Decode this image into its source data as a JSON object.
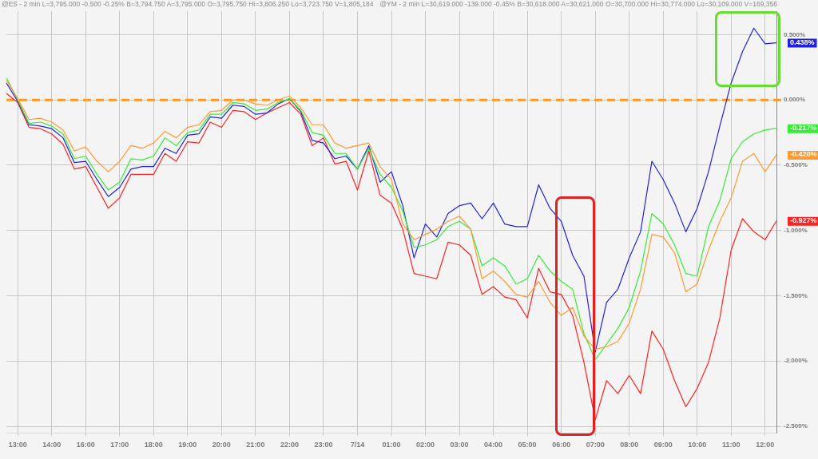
{
  "chart_data": {
    "type": "line",
    "annotations": [
      "@ES - 2 min L=3,795.000 -0.500 -0.25% B=3,794.750 A=3,795.000 O=3,795.750 Hi=3,806.250 Lo=3,723.750 V=1,805,184",
      "@YM - 2 min L=30,619.000 -139.000 -0.45% B=30,618.000 A=30,621.000 O=30,700.000 Hi=30,774.000 Lo=30,109.000 V=169,356"
    ],
    "categories": [
      null,
      "13:00",
      null,
      null,
      "14:00",
      null,
      null,
      "16:00",
      null,
      null,
      "17:00",
      null,
      null,
      "18:00",
      null,
      null,
      "19:00",
      null,
      null,
      "20:00",
      null,
      null,
      "21:00",
      null,
      null,
      "22:00",
      null,
      null,
      "23:00",
      null,
      null,
      "7/14",
      null,
      null,
      "01:00",
      null,
      null,
      "02:00",
      null,
      null,
      "03:00",
      null,
      null,
      "04:00",
      null,
      null,
      "05:00",
      null,
      null,
      "06:00",
      null,
      null,
      "07:00",
      null,
      null,
      "08:00",
      null,
      null,
      "09:00",
      null,
      null,
      "10:00",
      null,
      null,
      "11:00",
      null,
      null,
      "12:00",
      null
    ],
    "series": [
      {
        "color": "#ff9933",
        "values": [
          0.15,
          0.01,
          -0.15,
          -0.14,
          -0.17,
          -0.23,
          -0.39,
          -0.36,
          -0.47,
          -0.55,
          -0.47,
          -0.35,
          -0.37,
          -0.33,
          -0.24,
          -0.29,
          -0.21,
          -0.19,
          -0.09,
          -0.08,
          0.0,
          0.0,
          -0.03,
          -0.04,
          0.0,
          0.03,
          -0.06,
          -0.19,
          -0.19,
          -0.33,
          -0.37,
          -0.35,
          -0.33,
          -0.51,
          -0.61,
          -0.95,
          -1.07,
          -1.03,
          -0.99,
          -0.93,
          -0.89,
          -0.99,
          -1.37,
          -1.31,
          -1.39,
          -1.49,
          -1.51,
          -1.39,
          -1.55,
          -1.65,
          -1.59,
          -1.81,
          -1.91,
          -1.89,
          -1.85,
          -1.71,
          -1.45,
          -1.03,
          -1.05,
          -1.17,
          -1.47,
          -1.41,
          -1.15,
          -0.93,
          -0.75,
          -0.47,
          -0.41,
          -0.55,
          -0.42
        ],
        "value_labels": [
          null,
          null,
          null,
          null,
          null,
          null,
          null,
          null,
          null,
          null,
          null,
          null,
          null,
          null,
          null,
          null,
          null,
          null,
          null,
          null,
          null,
          null,
          null,
          null,
          null,
          null,
          null,
          null,
          null,
          null,
          null,
          null,
          null,
          null,
          null,
          null,
          null,
          null,
          null,
          null,
          null,
          null,
          null,
          null,
          null,
          null,
          null,
          null,
          null,
          null,
          null,
          null,
          null,
          null,
          null,
          null,
          null,
          null,
          null,
          null,
          null,
          null,
          null,
          null,
          null,
          null,
          null,
          null,
          "-0.420%"
        ]
      },
      {
        "color": "#33ee33",
        "values": [
          0.17,
          0.0,
          -0.18,
          -0.17,
          -0.2,
          -0.26,
          -0.45,
          -0.43,
          -0.57,
          -0.69,
          -0.63,
          -0.45,
          -0.46,
          -0.43,
          -0.29,
          -0.35,
          -0.25,
          -0.23,
          -0.11,
          -0.11,
          -0.02,
          -0.03,
          -0.08,
          -0.07,
          -0.02,
          0.01,
          -0.08,
          -0.25,
          -0.27,
          -0.41,
          -0.41,
          -0.53,
          -0.37,
          -0.57,
          -0.67,
          -0.85,
          -1.13,
          -1.11,
          -1.07,
          -0.97,
          -0.93,
          -0.99,
          -1.27,
          -1.21,
          -1.27,
          -1.41,
          -1.37,
          -1.19,
          -1.31,
          -1.39,
          -1.45,
          -1.79,
          -1.99,
          -1.87,
          -1.75,
          -1.59,
          -1.31,
          -0.87,
          -0.95,
          -1.11,
          -1.33,
          -1.35,
          -0.97,
          -0.77,
          -0.45,
          -0.32,
          -0.26,
          -0.23,
          -0.217
        ],
        "value_labels": [
          null,
          null,
          null,
          null,
          null,
          null,
          null,
          null,
          null,
          null,
          null,
          null,
          null,
          null,
          null,
          null,
          null,
          null,
          null,
          null,
          null,
          null,
          null,
          null,
          null,
          null,
          null,
          null,
          null,
          null,
          null,
          null,
          null,
          null,
          null,
          null,
          null,
          null,
          null,
          null,
          null,
          null,
          null,
          null,
          null,
          null,
          null,
          null,
          null,
          null,
          null,
          null,
          null,
          null,
          null,
          null,
          null,
          null,
          null,
          null,
          null,
          null,
          null,
          null,
          null,
          null,
          null,
          null,
          "-0.217%"
        ]
      },
      {
        "color": "#2222dd",
        "values": [
          0.13,
          -0.01,
          -0.19,
          -0.2,
          -0.22,
          -0.29,
          -0.48,
          -0.47,
          -0.61,
          -0.74,
          -0.67,
          -0.53,
          -0.51,
          -0.51,
          -0.37,
          -0.41,
          -0.27,
          -0.26,
          -0.13,
          -0.14,
          -0.04,
          -0.05,
          -0.11,
          -0.1,
          -0.03,
          0.01,
          -0.09,
          -0.31,
          -0.33,
          -0.45,
          -0.43,
          -0.53,
          -0.35,
          -0.63,
          -0.55,
          -0.81,
          -1.21,
          -0.95,
          -1.05,
          -0.87,
          -0.81,
          -0.79,
          -0.91,
          -0.79,
          -0.95,
          -0.97,
          -0.97,
          -0.65,
          -0.83,
          -0.93,
          -1.19,
          -1.35,
          -1.93,
          -1.55,
          -1.45,
          -1.21,
          -1.01,
          -0.47,
          -0.61,
          -0.79,
          -1.01,
          -0.83,
          -0.55,
          -0.2,
          0.13,
          0.37,
          0.55,
          0.43,
          0.438
        ],
        "value_labels": [
          null,
          null,
          null,
          null,
          null,
          null,
          null,
          null,
          null,
          null,
          null,
          null,
          null,
          null,
          null,
          null,
          null,
          null,
          null,
          null,
          null,
          null,
          null,
          null,
          null,
          null,
          null,
          null,
          null,
          null,
          null,
          null,
          null,
          null,
          null,
          null,
          null,
          null,
          null,
          null,
          null,
          null,
          null,
          null,
          null,
          null,
          null,
          null,
          null,
          null,
          null,
          null,
          null,
          null,
          null,
          null,
          null,
          null,
          null,
          null,
          null,
          null,
          null,
          null,
          null,
          null,
          null,
          null,
          "0.438%"
        ]
      },
      {
        "color": "#ff2222",
        "values": [
          0.05,
          -0.02,
          -0.21,
          -0.22,
          -0.26,
          -0.34,
          -0.53,
          -0.51,
          -0.67,
          -0.83,
          -0.75,
          -0.57,
          -0.57,
          -0.57,
          -0.41,
          -0.47,
          -0.32,
          -0.33,
          -0.17,
          -0.21,
          -0.08,
          -0.09,
          -0.15,
          -0.1,
          -0.06,
          -0.02,
          -0.11,
          -0.35,
          -0.29,
          -0.49,
          -0.47,
          -0.69,
          -0.39,
          -0.73,
          -0.79,
          -0.99,
          -1.33,
          -1.35,
          -1.37,
          -1.09,
          -1.11,
          -1.19,
          -1.49,
          -1.43,
          -1.51,
          -1.53,
          -1.67,
          -1.29,
          -1.47,
          -1.49,
          -1.65,
          -2.01,
          -2.45,
          -2.15,
          -2.25,
          -2.11,
          -2.25,
          -1.77,
          -1.91,
          -2.15,
          -2.35,
          -2.21,
          -2.01,
          -1.67,
          -1.15,
          -0.91,
          -1.01,
          -1.07,
          -0.927
        ],
        "value_labels": [
          null,
          null,
          null,
          null,
          null,
          null,
          null,
          null,
          null,
          null,
          null,
          null,
          null,
          null,
          null,
          null,
          null,
          null,
          null,
          null,
          null,
          null,
          null,
          null,
          null,
          null,
          null,
          null,
          null,
          null,
          null,
          null,
          null,
          null,
          null,
          null,
          null,
          null,
          null,
          null,
          null,
          null,
          null,
          null,
          null,
          null,
          null,
          null,
          null,
          null,
          null,
          null,
          null,
          null,
          null,
          null,
          null,
          null,
          null,
          null,
          null,
          null,
          null,
          null,
          null,
          null,
          null,
          null,
          "-0.927%"
        ]
      }
    ],
    "ylim": [
      -2.55,
      0.68
    ],
    "yticks": [
      {
        "value": 0.5,
        "label": "0.500%"
      },
      {
        "value": 0,
        "label": "0.000%"
      },
      {
        "value": -0.5,
        "label": "-0.500%"
      },
      {
        "value": -1,
        "label": "-1.000%"
      },
      {
        "value": -1.5,
        "label": "-1.500%"
      },
      {
        "value": -2,
        "label": "-2.000%"
      },
      {
        "value": -2.5,
        "label": "-2.500%"
      }
    ],
    "ref_lines": [
      {
        "axis": "y",
        "value": 0,
        "color": "#ff9922",
        "line_style": "dashed"
      }
    ],
    "grid": true,
    "legend": false,
    "marker": "none",
    "line_style": "solid"
  }
}
